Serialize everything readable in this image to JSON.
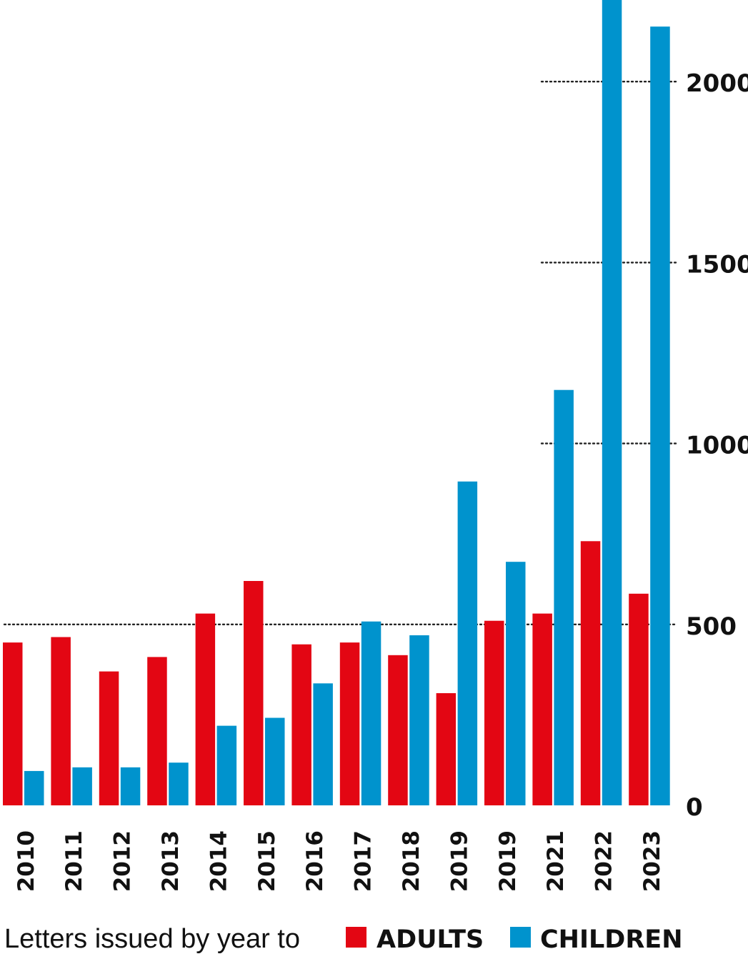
{
  "chart_data": {
    "type": "bar",
    "title": "Letters issued by year to",
    "categories": [
      "2010",
      "2011",
      "2012",
      "2013",
      "2014",
      "2015",
      "2016",
      "2017",
      "2018",
      "2019",
      "2019",
      "2021",
      "2022",
      "2023"
    ],
    "series": [
      {
        "name": "ADULTS",
        "color": "#e30613",
        "values": [
          450,
          465,
          370,
          410,
          530,
          620,
          445,
          450,
          415,
          310,
          510,
          530,
          730,
          585
        ]
      },
      {
        "name": "CHILDREN",
        "color": "#0093cd",
        "values": [
          95,
          105,
          105,
          118,
          220,
          242,
          337,
          508,
          470,
          895,
          673,
          1148,
          2230,
          2152
        ]
      }
    ],
    "ylim": [
      0,
      2230
    ],
    "yticks": [
      0,
      500,
      1000,
      1500,
      2000
    ],
    "ytick_labels": [
      "0",
      "500",
      "1000",
      "1500",
      "2000"
    ],
    "grid": "dotted at 500, 1000, 1500, 2000",
    "legend": {
      "title": "Letters issued by year to",
      "items": [
        "ADULTS",
        "CHILDREN"
      ],
      "placement": "bottom"
    }
  }
}
